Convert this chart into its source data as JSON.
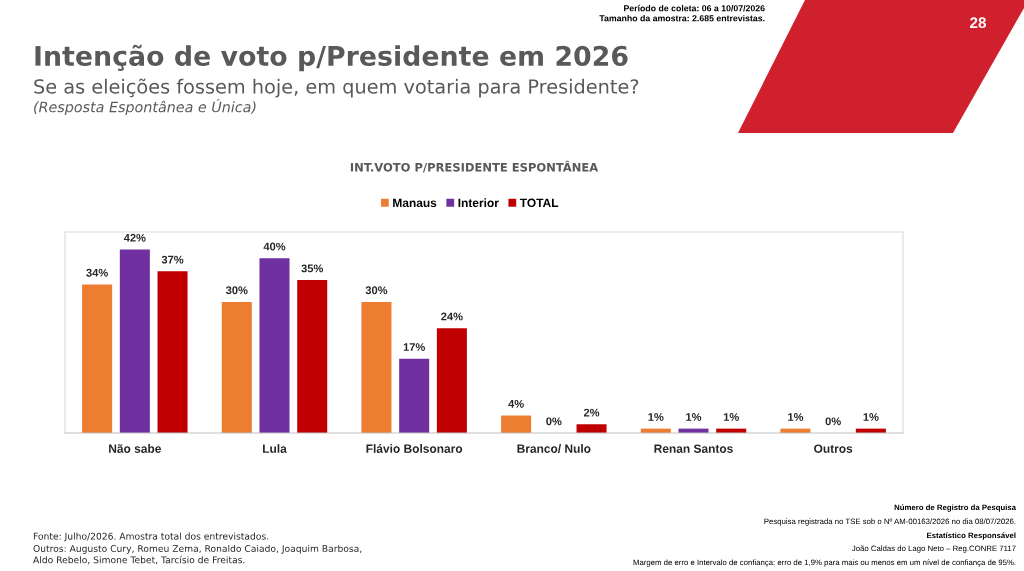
{
  "chart_data": {
    "type": "bar",
    "title": "Intenção de voto p/Presidente em 2026",
    "subtitle": "Se as eleições fossem hoje, em quem votaria para Presidente?",
    "annotations": [
      "Período de coleta: 06 a 10/07/2026",
      "Tamanho da amostra: 2.685 entrevistas.",
      "28",
      "(Resposta Espontânea e Única)",
      "INT.VOTO P/PRESIDENTE ESPONTÂNEA",
      "Fonte: Julho/2026. Amostra total dos entrevistados.",
      "Outros: Augusto Cury, Romeu Zema, Ronaldo Caiado, Joaquim Barbosa,\nAldo Rebelo, Simone Tebet, Tarcísio de Freitas.",
      "Número de Registro da Pesquisa",
      "Pesquisa registrada no TSE sob o Nº AM-00163/2026 no dia 08/07/2026.",
      "Estatístico Responsável",
      "João Caldas do Lago Neto – Reg.CONRE 7117",
      "Margem de erro e Intervalo de confiança: erro de 1,9% para mais ou menos em um nível de confiança de 95%."
    ],
    "categories": [
      "Não sabe",
      "Lula",
      "Flávio Bolsonaro",
      "Branco/ Nulo",
      "Renan Santos",
      "Outros"
    ],
    "series": [
      {
        "name": "Manaus",
        "color": "#ed7d31",
        "values": [
          34,
          30,
          30,
          4,
          1,
          1
        ],
        "value_labels": [
          "34%",
          "30%",
          "30%",
          "4%",
          "1%",
          "1%"
        ]
      },
      {
        "name": "Interior",
        "color": "#7030a0",
        "values": [
          42,
          40,
          17,
          0,
          1,
          0
        ],
        "value_labels": [
          "42%",
          "40%",
          "17%",
          "0%",
          "1%",
          "0%"
        ]
      },
      {
        "name": "TOTAL",
        "color": "#c00000",
        "values": [
          37,
          35,
          24,
          2,
          1,
          1
        ],
        "value_labels": [
          "37%",
          "35%",
          "24%",
          "2%",
          "1%",
          "1%"
        ]
      }
    ],
    "ylim": [
      0,
      46
    ],
    "tick_labels": "x",
    "legend": "top",
    "grid": false
  }
}
